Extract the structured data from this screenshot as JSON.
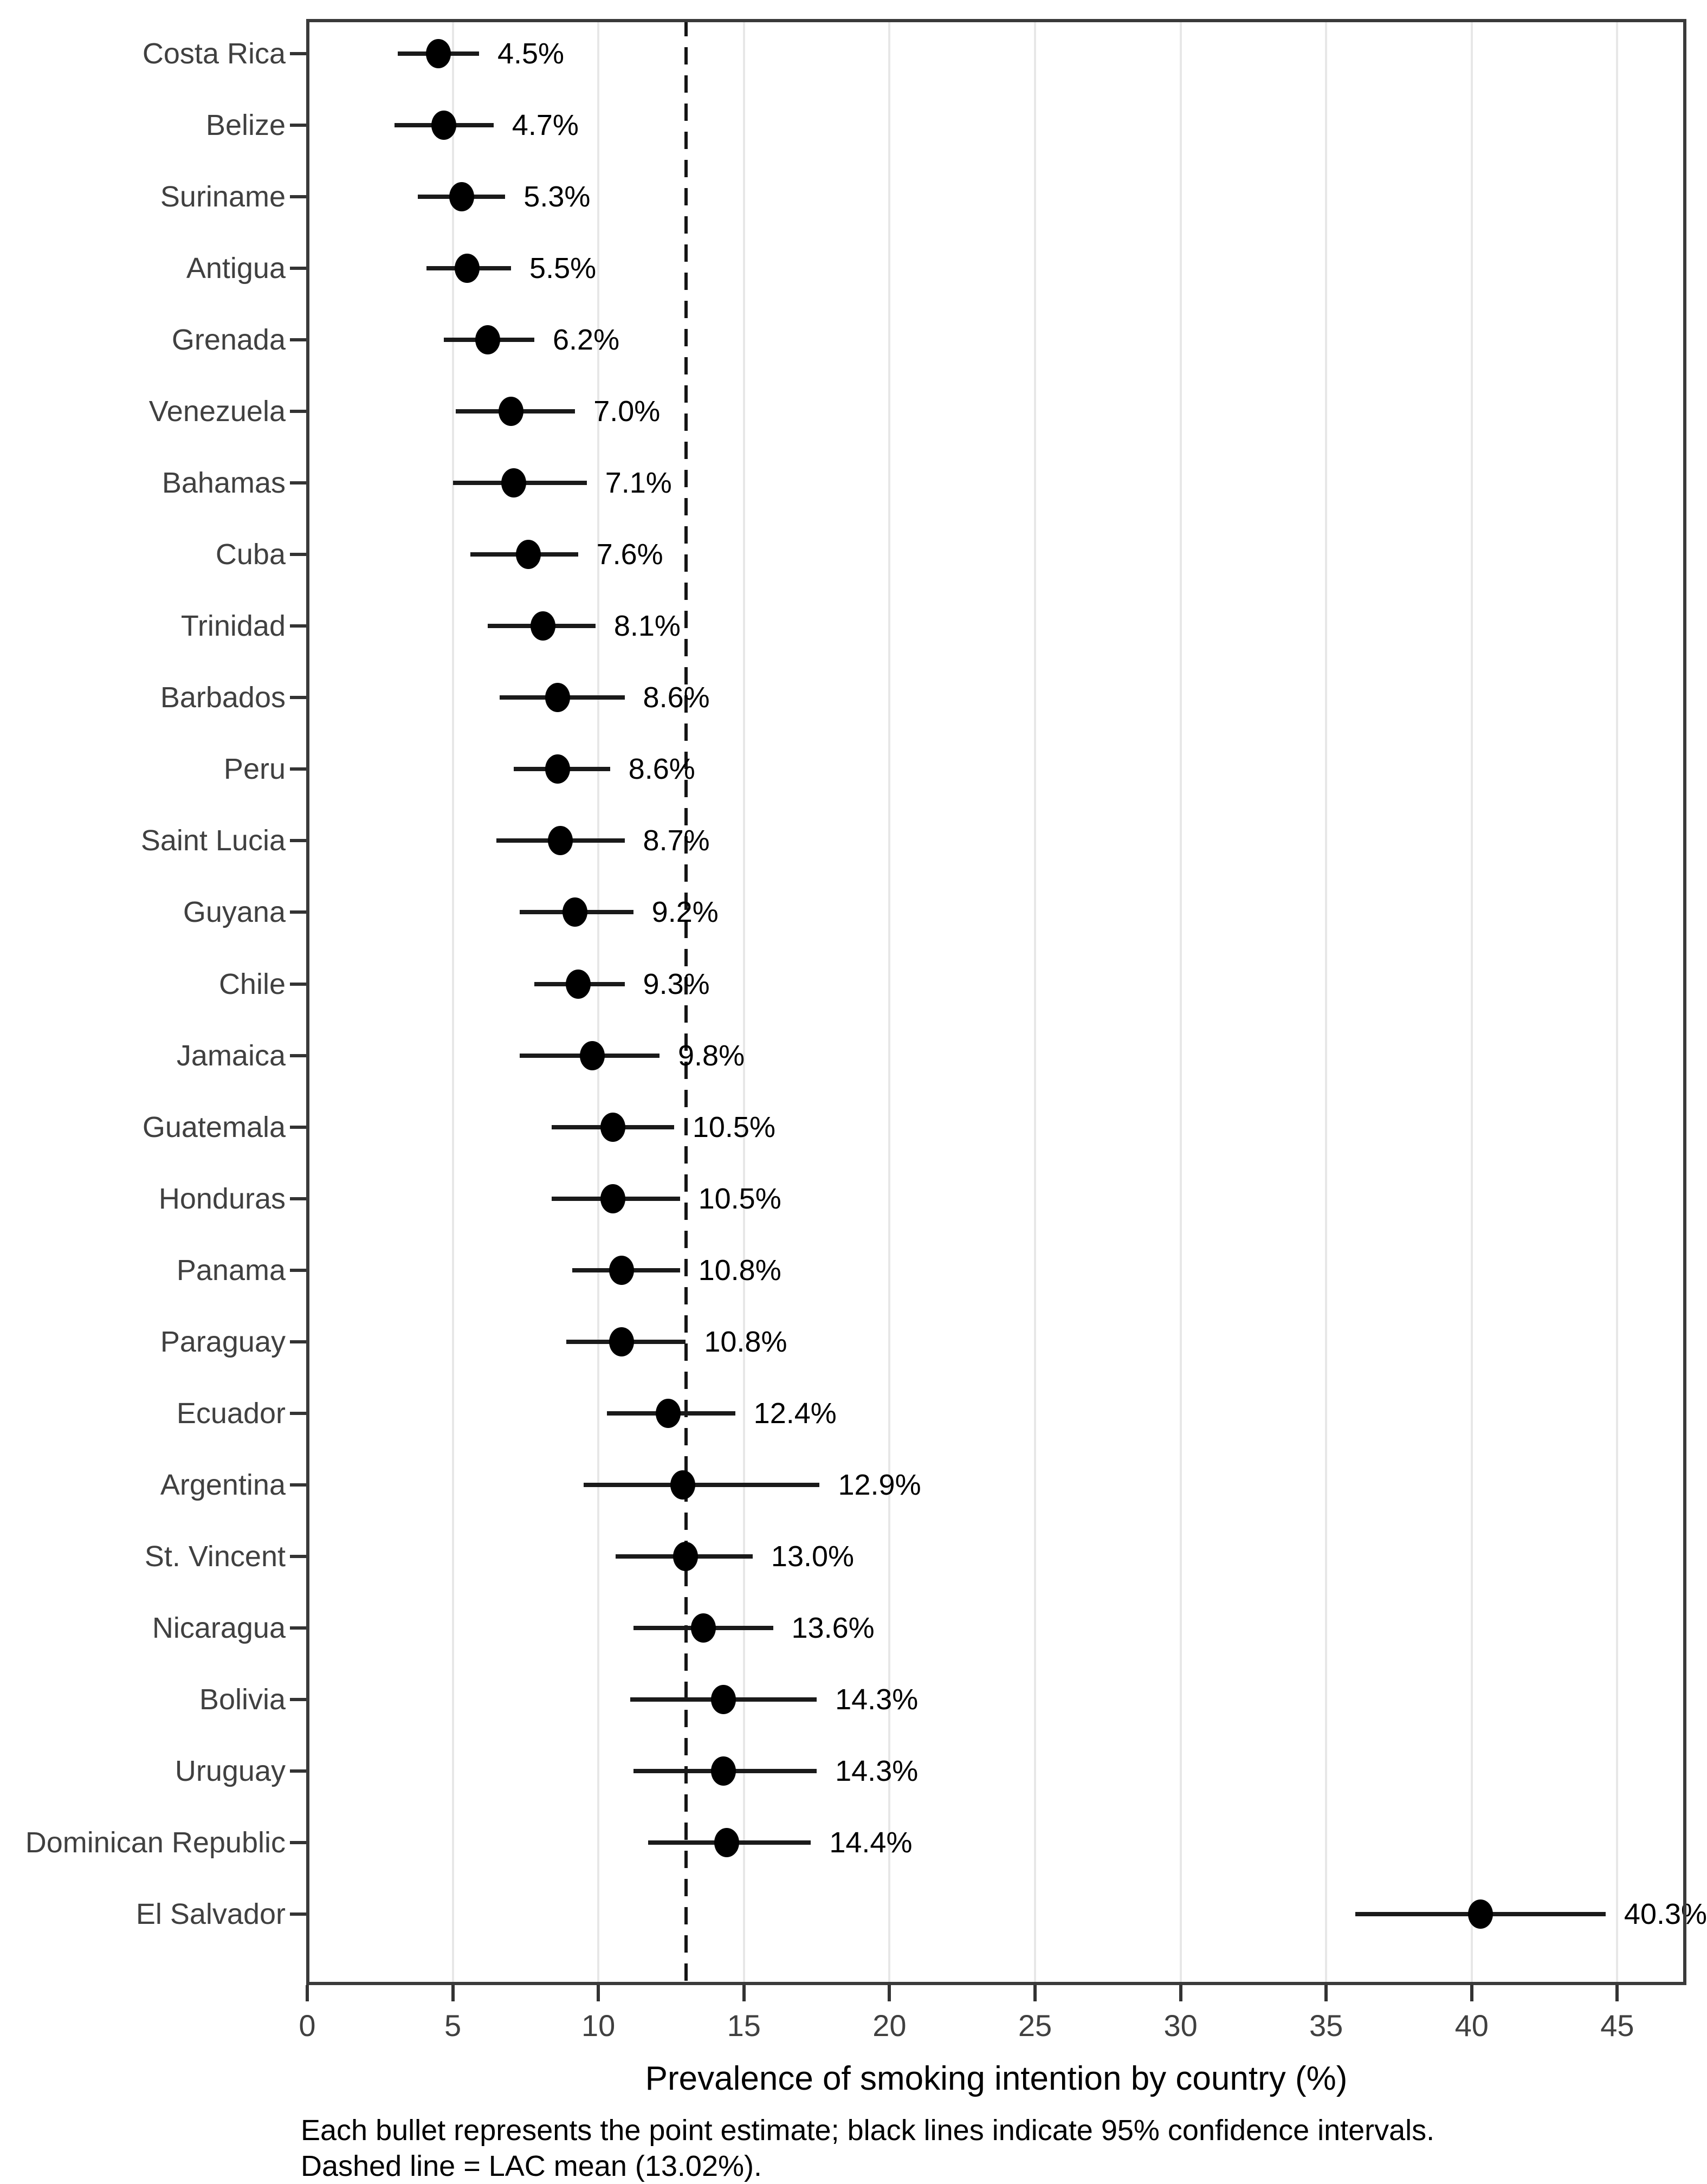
{
  "chart_data": {
    "type": "scatter",
    "variant": "forest-plot-dot-with-ci",
    "title": "",
    "xlabel": "Prevalence of smoking intention by country (%)",
    "ylabel": "",
    "xlim": [
      0,
      47.4
    ],
    "x_ticks": [
      "0",
      "5",
      "10",
      "15",
      "20",
      "25",
      "30",
      "35",
      "40",
      "45"
    ],
    "x_tick_values": [
      0,
      5,
      10,
      15,
      20,
      25,
      30,
      35,
      40,
      45
    ],
    "grid": "vertical-major-only",
    "legend": "none",
    "reference_line": {
      "value": 13.02,
      "style": "dashed",
      "meaning": "LAC mean"
    },
    "rows": [
      {
        "country": "Costa Rica",
        "value": 4.5,
        "value_label": "4.5%",
        "ci_low": 3.1,
        "ci_high": 5.9
      },
      {
        "country": "Belize",
        "value": 4.7,
        "value_label": "4.7%",
        "ci_low": 3.0,
        "ci_high": 6.4
      },
      {
        "country": "Suriname",
        "value": 5.3,
        "value_label": "5.3%",
        "ci_low": 3.8,
        "ci_high": 6.8
      },
      {
        "country": "Antigua",
        "value": 5.5,
        "value_label": "5.5%",
        "ci_low": 4.1,
        "ci_high": 7.0
      },
      {
        "country": "Grenada",
        "value": 6.2,
        "value_label": "6.2%",
        "ci_low": 4.7,
        "ci_high": 7.8
      },
      {
        "country": "Venezuela",
        "value": 7.0,
        "value_label": "7.0%",
        "ci_low": 5.1,
        "ci_high": 9.2
      },
      {
        "country": "Bahamas",
        "value": 7.1,
        "value_label": "7.1%",
        "ci_low": 5.0,
        "ci_high": 9.6
      },
      {
        "country": "Cuba",
        "value": 7.6,
        "value_label": "7.6%",
        "ci_low": 5.6,
        "ci_high": 9.3
      },
      {
        "country": "Trinidad",
        "value": 8.1,
        "value_label": "8.1%",
        "ci_low": 6.2,
        "ci_high": 9.9
      },
      {
        "country": "Barbados",
        "value": 8.6,
        "value_label": "8.6%",
        "ci_low": 6.6,
        "ci_high": 10.9
      },
      {
        "country": "Peru",
        "value": 8.6,
        "value_label": "8.6%",
        "ci_low": 7.1,
        "ci_high": 10.4
      },
      {
        "country": "Saint Lucia",
        "value": 8.7,
        "value_label": "8.7%",
        "ci_low": 6.5,
        "ci_high": 10.9
      },
      {
        "country": "Guyana",
        "value": 9.2,
        "value_label": "9.2%",
        "ci_low": 7.3,
        "ci_high": 11.2
      },
      {
        "country": "Chile",
        "value": 9.3,
        "value_label": "9.3%",
        "ci_low": 7.8,
        "ci_high": 10.9
      },
      {
        "country": "Jamaica",
        "value": 9.8,
        "value_label": "9.8%",
        "ci_low": 7.3,
        "ci_high": 12.1
      },
      {
        "country": "Guatemala",
        "value": 10.5,
        "value_label": "10.5%",
        "ci_low": 8.4,
        "ci_high": 12.6
      },
      {
        "country": "Honduras",
        "value": 10.5,
        "value_label": "10.5%",
        "ci_low": 8.4,
        "ci_high": 12.8
      },
      {
        "country": "Panama",
        "value": 10.8,
        "value_label": "10.8%",
        "ci_low": 9.1,
        "ci_high": 12.8
      },
      {
        "country": "Paraguay",
        "value": 10.8,
        "value_label": "10.8%",
        "ci_low": 8.9,
        "ci_high": 13.0
      },
      {
        "country": "Ecuador",
        "value": 12.4,
        "value_label": "12.4%",
        "ci_low": 10.3,
        "ci_high": 14.7
      },
      {
        "country": "Argentina",
        "value": 12.9,
        "value_label": "12.9%",
        "ci_low": 9.5,
        "ci_high": 17.6
      },
      {
        "country": "St. Vincent",
        "value": 13.0,
        "value_label": "13.0%",
        "ci_low": 10.6,
        "ci_high": 15.3
      },
      {
        "country": "Nicaragua",
        "value": 13.6,
        "value_label": "13.6%",
        "ci_low": 11.2,
        "ci_high": 16.0
      },
      {
        "country": "Bolivia",
        "value": 14.3,
        "value_label": "14.3%",
        "ci_low": 11.1,
        "ci_high": 17.5
      },
      {
        "country": "Uruguay",
        "value": 14.3,
        "value_label": "14.3%",
        "ci_low": 11.2,
        "ci_high": 17.5
      },
      {
        "country": "Dominican Republic",
        "value": 14.4,
        "value_label": "14.4%",
        "ci_low": 11.7,
        "ci_high": 17.3
      },
      {
        "country": "El Salvador",
        "value": 40.3,
        "value_label": "40.3%",
        "ci_low": 36.0,
        "ci_high": 44.6
      }
    ]
  },
  "caption": {
    "line1": "Each bullet represents the point estimate; black lines indicate 95% confidence intervals.",
    "line2": "Dashed line = LAC mean (13.02%)."
  },
  "colors": {
    "point": "#000000",
    "ci_line": "#1a1a1a",
    "gridline": "#e7e7e7",
    "panel_border": "#3a3a3a",
    "axis_text": "#404040",
    "value_text": "#000000",
    "reference_line": "#151515",
    "background": "#ffffff"
  }
}
